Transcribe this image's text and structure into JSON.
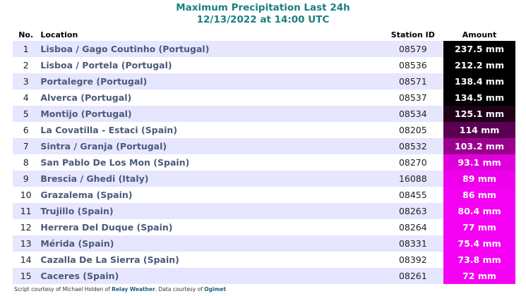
{
  "title_line1": "Maximum Precipitation Last 24h",
  "title_line2": "12/13/2022 at 14:00 UTC",
  "headers": {
    "no": "No.",
    "location": "Location",
    "station": "Station ID",
    "amount": "Amount"
  },
  "rows": [
    {
      "no": "1",
      "location": "Lisboa / Gago Coutinho (Portugal)",
      "station": "08579",
      "amount": "237.5 mm",
      "color": "#000000"
    },
    {
      "no": "2",
      "location": "Lisboa / Portela (Portugal)",
      "station": "08536",
      "amount": "212.2 mm",
      "color": "#000000"
    },
    {
      "no": "3",
      "location": "Portalegre (Portugal)",
      "station": "08571",
      "amount": "138.4 mm",
      "color": "#000000"
    },
    {
      "no": "4",
      "location": "Alverca (Portugal)",
      "station": "08537",
      "amount": "134.5 mm",
      "color": "#000000"
    },
    {
      "no": "5",
      "location": "Montijo (Portugal)",
      "station": "08534",
      "amount": "125.1 mm",
      "color": "#1e0019"
    },
    {
      "no": "6",
      "location": "La Covatilla - Estaci (Spain)",
      "station": "08205",
      "amount": "114 mm",
      "color": "#5a0052"
    },
    {
      "no": "7",
      "location": "Sintra / Granja (Portugal)",
      "station": "08532",
      "amount": "103.2 mm",
      "color": "#9a008e"
    },
    {
      "no": "8",
      "location": "San Pablo De Los Mon (Spain)",
      "station": "08270",
      "amount": "93.1 mm",
      "color": "#e000dc"
    },
    {
      "no": "9",
      "location": "Brescia / Ghedi (Italy)",
      "station": "16088",
      "amount": "89 mm",
      "color": "#ee00ec"
    },
    {
      "no": "10",
      "location": "Grazalema (Spain)",
      "station": "08455",
      "amount": "86 mm",
      "color": "#f400f2"
    },
    {
      "no": "11",
      "location": "Trujillo (Spain)",
      "station": "08263",
      "amount": "80.4 mm",
      "color": "#f400f2"
    },
    {
      "no": "12",
      "location": "Herrera Del Duque (Spain)",
      "station": "08264",
      "amount": "77 mm",
      "color": "#f400f2"
    },
    {
      "no": "13",
      "location": "Mérida (Spain)",
      "station": "08331",
      "amount": "75.4 mm",
      "color": "#f400f2"
    },
    {
      "no": "14",
      "location": "Cazalla De La Sierra (Spain)",
      "station": "08392",
      "amount": "73.8 mm",
      "color": "#f400f2"
    },
    {
      "no": "15",
      "location": "Caceres (Spain)",
      "station": "08261",
      "amount": "72 mm",
      "color": "#f400f2"
    }
  ],
  "footer": {
    "prefix": "Script courtesy of  Michael Holden of ",
    "relay": "Relay Weather",
    "middle": ". Data courtesy of ",
    "ogimet": "Ogimet"
  }
}
